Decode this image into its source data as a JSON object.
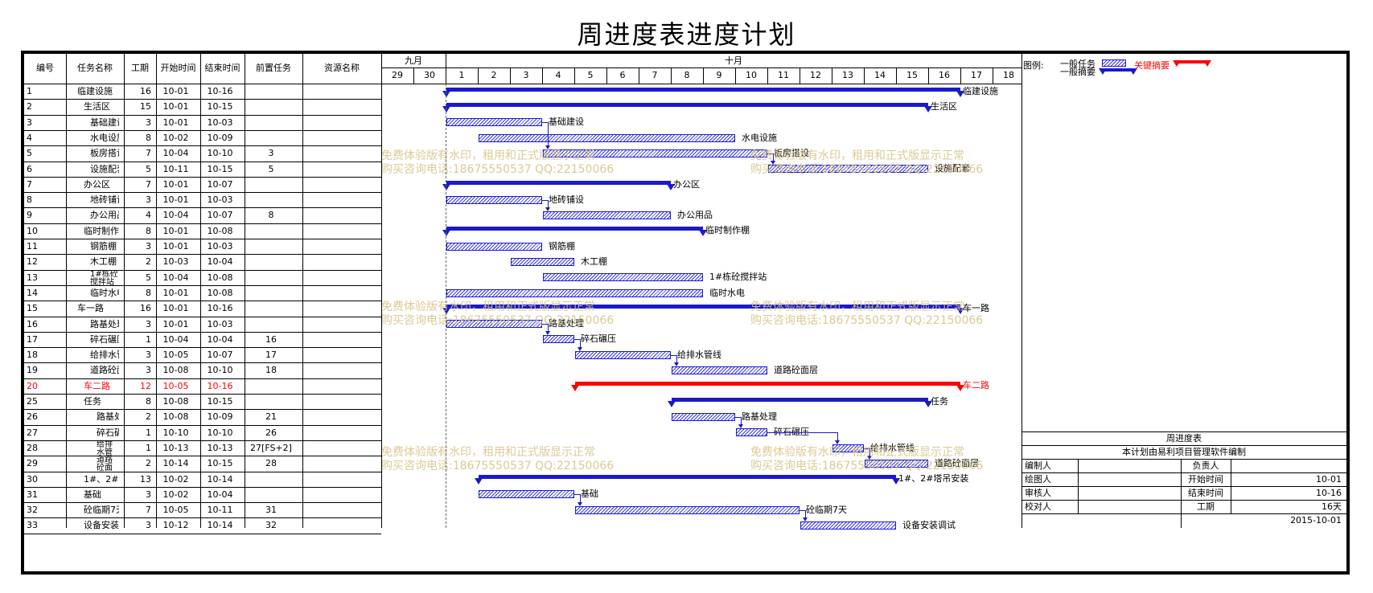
{
  "title": "周进度表进度计划",
  "columns": {
    "no": "编号",
    "name": "任务名称",
    "duration": "工期",
    "start": "开始时间",
    "end": "结束时间",
    "pred": "前置任务",
    "resource": "资源名称"
  },
  "timeline": {
    "month1": "九月",
    "month2": "十月",
    "days": [
      "29",
      "30",
      "1",
      "2",
      "3",
      "4",
      "5",
      "6",
      "7",
      "8",
      "9",
      "10",
      "11",
      "12",
      "13",
      "14",
      "15",
      "16",
      "17",
      "18"
    ]
  },
  "legend": {
    "label": "图例:",
    "normal_task": "一般任务",
    "normal_summary": "一般摘要",
    "critical_summary": "关键摘要"
  },
  "watermark": {
    "line1": "免费体验版有水印，租用和正式版显示正常",
    "line2": "购买咨询电话:18675550537 QQ:22150066"
  },
  "tasks": [
    {
      "no": "1",
      "name": "临建设施",
      "indent": 0,
      "dur": "16",
      "start": "10-01",
      "end": "10-16",
      "pred": "",
      "type": "summary",
      "s": 1,
      "e": 16,
      "critical": false
    },
    {
      "no": "2",
      "name": "生活区",
      "indent": 1,
      "dur": "15",
      "start": "10-01",
      "end": "10-15",
      "pred": "",
      "type": "summary",
      "s": 1,
      "e": 15,
      "critical": false
    },
    {
      "no": "3",
      "name": "基础建设",
      "indent": 2,
      "dur": "3",
      "start": "10-01",
      "end": "10-03",
      "pred": "",
      "type": "task",
      "s": 1,
      "e": 3,
      "critical": false
    },
    {
      "no": "4",
      "name": "水电设施",
      "indent": 2,
      "dur": "8",
      "start": "10-02",
      "end": "10-09",
      "pred": "",
      "type": "task",
      "s": 2,
      "e": 9,
      "critical": false
    },
    {
      "no": "5",
      "name": "板房搭设",
      "indent": 2,
      "dur": "7",
      "start": "10-04",
      "end": "10-10",
      "pred": "3",
      "type": "task",
      "s": 4,
      "e": 10,
      "critical": false
    },
    {
      "no": "6",
      "name": "设施配套",
      "indent": 2,
      "dur": "5",
      "start": "10-11",
      "end": "10-15",
      "pred": "5",
      "type": "task",
      "s": 11,
      "e": 15,
      "critical": false
    },
    {
      "no": "7",
      "name": "办公区",
      "indent": 1,
      "dur": "7",
      "start": "10-01",
      "end": "10-07",
      "pred": "",
      "type": "summary",
      "s": 1,
      "e": 7,
      "critical": false
    },
    {
      "no": "8",
      "name": "地砖铺设",
      "indent": 2,
      "dur": "3",
      "start": "10-01",
      "end": "10-03",
      "pred": "",
      "type": "task",
      "s": 1,
      "e": 3,
      "critical": false
    },
    {
      "no": "9",
      "name": "办公用品",
      "indent": 2,
      "dur": "4",
      "start": "10-04",
      "end": "10-07",
      "pred": "8",
      "type": "task",
      "s": 4,
      "e": 7,
      "critical": false
    },
    {
      "no": "10",
      "name": "临时制作棚",
      "indent": 1,
      "dur": "8",
      "start": "10-01",
      "end": "10-08",
      "pred": "",
      "type": "summary",
      "s": 1,
      "e": 8,
      "critical": false
    },
    {
      "no": "11",
      "name": "钢筋棚",
      "indent": 2,
      "dur": "3",
      "start": "10-01",
      "end": "10-03",
      "pred": "",
      "type": "task",
      "s": 1,
      "e": 3,
      "critical": false
    },
    {
      "no": "12",
      "name": "木工棚",
      "indent": 2,
      "dur": "2",
      "start": "10-03",
      "end": "10-04",
      "pred": "",
      "type": "task",
      "s": 3,
      "e": 4,
      "critical": false
    },
    {
      "no": "13",
      "name": "1#栋砼搅拌站",
      "indent": 2,
      "dur": "5",
      "start": "10-04",
      "end": "10-08",
      "pred": "",
      "type": "task",
      "s": 4,
      "e": 8,
      "critical": false
    },
    {
      "no": "14",
      "name": "临时水电",
      "indent": 2,
      "dur": "8",
      "start": "10-01",
      "end": "10-08",
      "pred": "",
      "type": "task",
      "s": 1,
      "e": 8,
      "critical": false
    },
    {
      "no": "15",
      "name": "车一路",
      "indent": 0,
      "dur": "16",
      "start": "10-01",
      "end": "10-16",
      "pred": "",
      "type": "summary",
      "s": 1,
      "e": 16,
      "critical": false
    },
    {
      "no": "16",
      "name": "路基处理",
      "indent": 2,
      "dur": "3",
      "start": "10-01",
      "end": "10-03",
      "pred": "",
      "type": "task",
      "s": 1,
      "e": 3,
      "critical": false
    },
    {
      "no": "17",
      "name": "碎石碾压",
      "indent": 2,
      "dur": "1",
      "start": "10-04",
      "end": "10-04",
      "pred": "16",
      "type": "task",
      "s": 4,
      "e": 4,
      "critical": false
    },
    {
      "no": "18",
      "name": "给排水管线",
      "indent": 2,
      "dur": "3",
      "start": "10-05",
      "end": "10-07",
      "pred": "17",
      "type": "task",
      "s": 5,
      "e": 7,
      "critical": false
    },
    {
      "no": "19",
      "name": "道路砼面层",
      "indent": 2,
      "dur": "3",
      "start": "10-08",
      "end": "10-10",
      "pred": "18",
      "type": "task",
      "s": 8,
      "e": 10,
      "critical": false
    },
    {
      "no": "20",
      "name": "车二路",
      "indent": 1,
      "dur": "12",
      "start": "10-05",
      "end": "10-16",
      "pred": "",
      "type": "summary",
      "s": 5,
      "e": 16,
      "critical": true
    },
    {
      "no": "25",
      "name": "任务",
      "indent": 1,
      "dur": "8",
      "start": "10-08",
      "end": "10-15",
      "pred": "",
      "type": "summary",
      "s": 8,
      "e": 15,
      "critical": false
    },
    {
      "no": "26",
      "name": "路基处理",
      "indent": 3,
      "dur": "2",
      "start": "10-08",
      "end": "10-09",
      "pred": "21",
      "type": "task",
      "s": 8,
      "e": 9,
      "critical": false
    },
    {
      "no": "27",
      "name": "碎石碾压",
      "indent": 3,
      "dur": "1",
      "start": "10-10",
      "end": "10-10",
      "pred": "26",
      "type": "task",
      "s": 10,
      "e": 10,
      "critical": false
    },
    {
      "no": "28",
      "name": "给排水管线",
      "indent": 3,
      "dur": "1",
      "start": "10-13",
      "end": "10-13",
      "pred": "27[FS+2]",
      "type": "task",
      "s": 13,
      "e": 13,
      "critical": false
    },
    {
      "no": "29",
      "name": "道路砼面层",
      "indent": 3,
      "dur": "2",
      "start": "10-14",
      "end": "10-15",
      "pred": "28",
      "type": "task",
      "s": 14,
      "e": 15,
      "critical": false
    },
    {
      "no": "30",
      "name": "1#、2#塔吊安装",
      "indent": 1,
      "dur": "13",
      "start": "10-02",
      "end": "10-14",
      "pred": "",
      "type": "summary",
      "s": 2,
      "e": 14,
      "critical": false
    },
    {
      "no": "31",
      "name": "基础",
      "indent": 1,
      "dur": "3",
      "start": "10-02",
      "end": "10-04",
      "pred": "",
      "type": "task",
      "s": 2,
      "e": 4,
      "critical": false
    },
    {
      "no": "32",
      "name": "砼临期7天",
      "indent": 1,
      "dur": "7",
      "start": "10-05",
      "end": "10-11",
      "pred": "31",
      "type": "task",
      "s": 5,
      "e": 11,
      "critical": false
    },
    {
      "no": "33",
      "name": "设备安装调试",
      "indent": 1,
      "dur": "3",
      "start": "10-12",
      "end": "10-14",
      "pred": "32",
      "type": "task",
      "s": 12,
      "e": 14,
      "critical": false
    }
  ],
  "info": {
    "title": "周进度表",
    "subtitle": "本计划由易利项目管理软件编制",
    "rows": [
      {
        "label1": "编制人",
        "value1": "",
        "label2": "负责人",
        "value2": ""
      },
      {
        "label1": "绘图人",
        "value1": "",
        "label2": "开始时间",
        "value2": "10-01"
      },
      {
        "label1": "审核人",
        "value1": "",
        "label2": "结束时间",
        "value2": "10-16"
      },
      {
        "label1": "校对人",
        "value1": "",
        "label2": "工期",
        "value2": "16天"
      }
    ],
    "date": "2015-10-01"
  },
  "colors": {
    "task_blue": "#1a1acc",
    "critical_red": "#ff0000",
    "watermark": "#d6c58a"
  }
}
